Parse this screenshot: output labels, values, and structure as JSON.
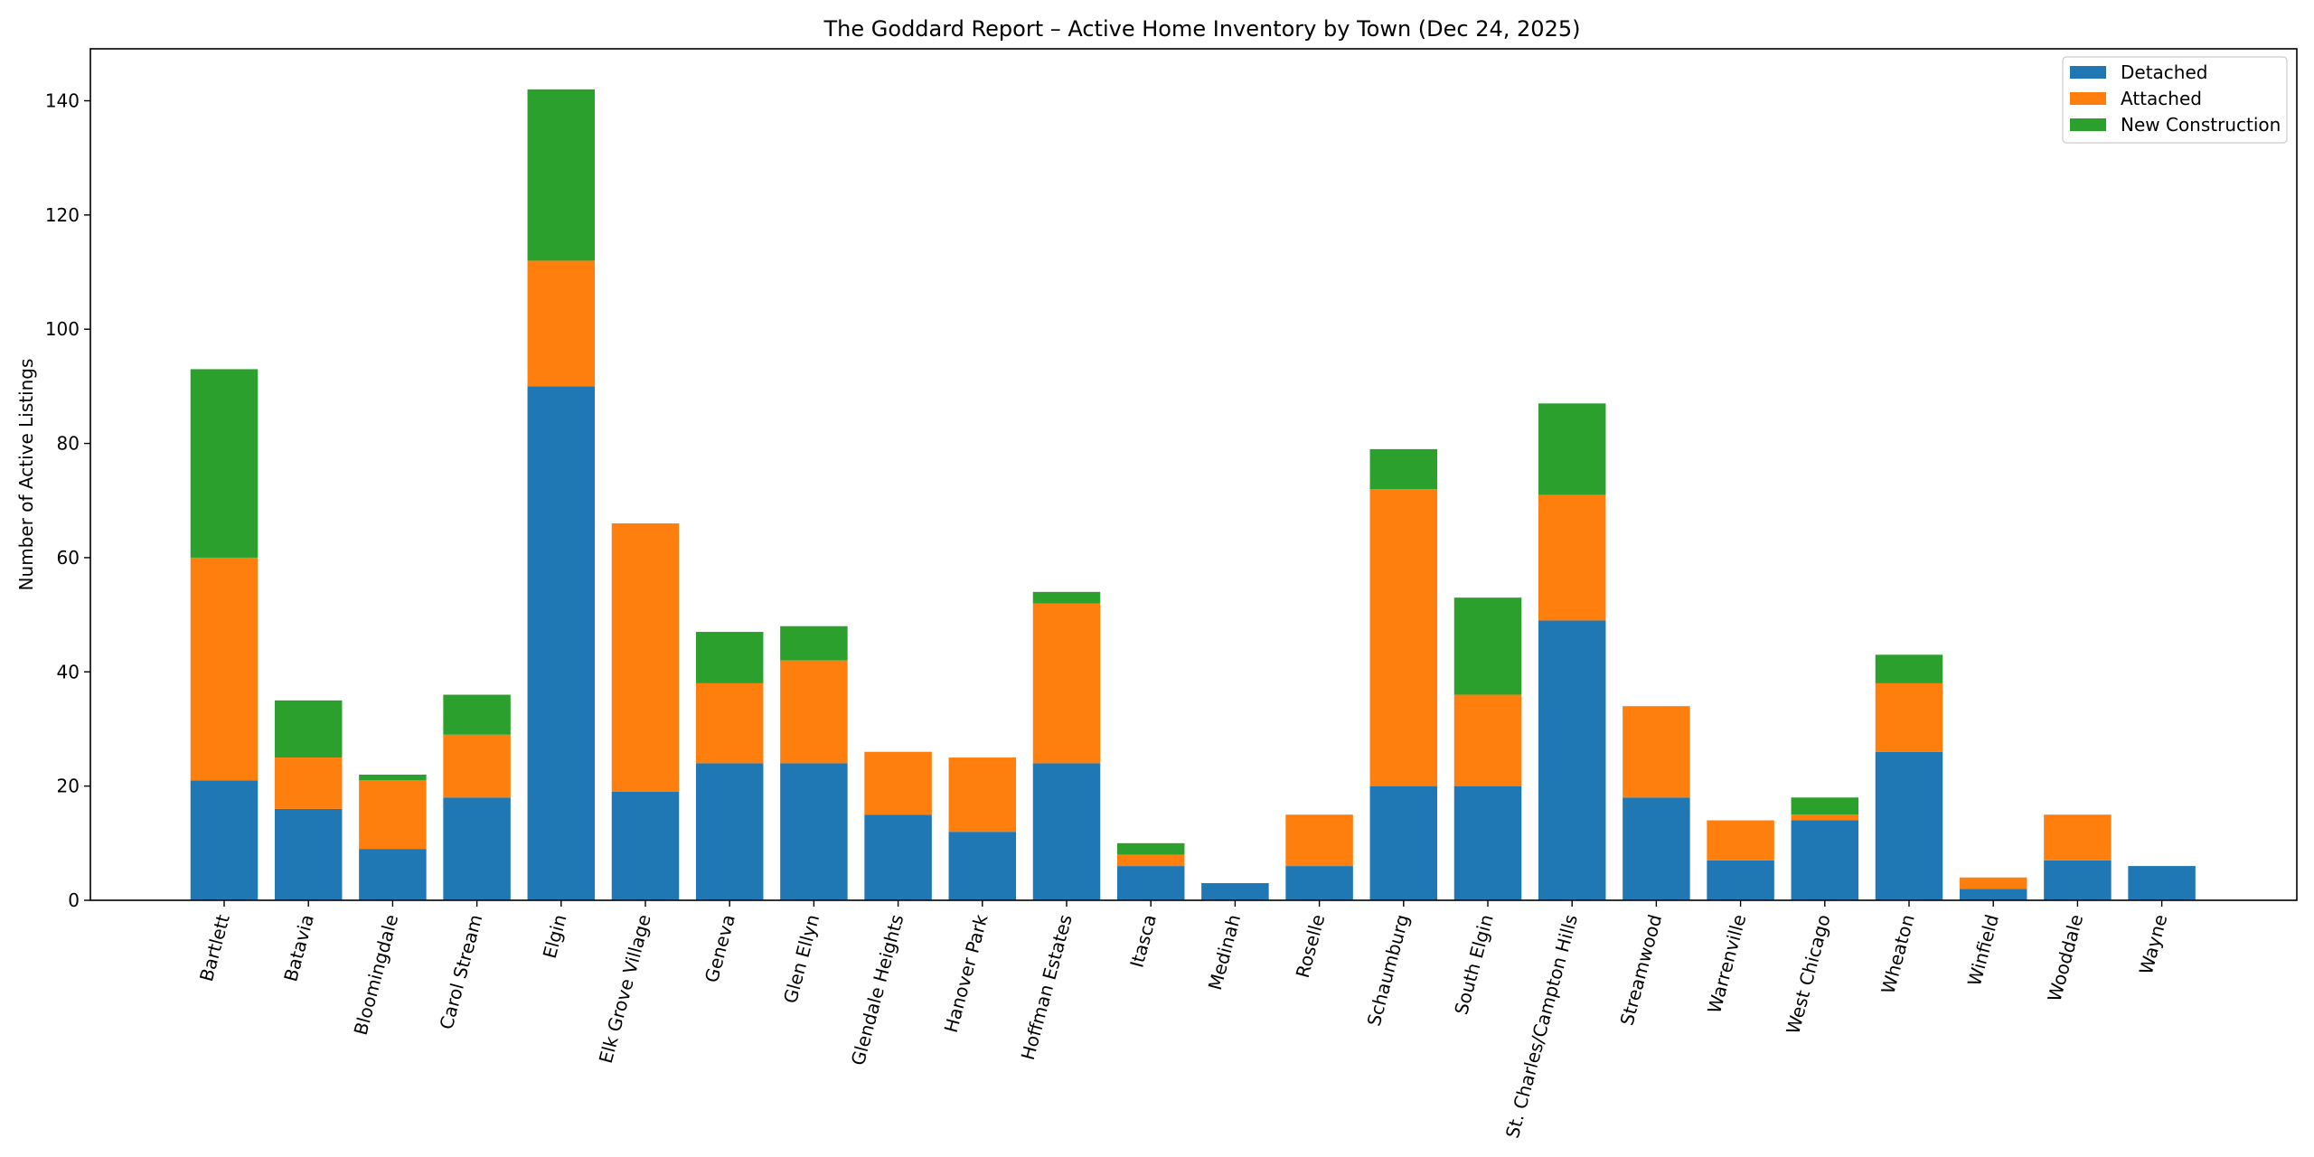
{
  "chart_data": {
    "type": "bar",
    "stacked": true,
    "title": "The Goddard Report – Active Home Inventory by Town (Dec 24, 2025)",
    "xlabel": "",
    "ylabel": "Number of Active Listings",
    "ylim": [
      0,
      149.1
    ],
    "yticks": [
      0,
      20,
      40,
      60,
      80,
      100,
      120,
      140
    ],
    "grid": false,
    "legend_position": "top-right",
    "categories": [
      "Bartlett",
      "Batavia",
      "Bloomingdale",
      "Carol Stream",
      "Elgin",
      "Elk Grove Village",
      "Geneva",
      "Glen Ellyn",
      "Glendale Heights",
      "Hanover Park",
      "Hoffman Estates",
      "Itasca",
      "Medinah",
      "Roselle",
      "Schaumburg",
      "South Elgin",
      "St. Charles/Campton Hills",
      "Streamwood",
      "Warrenville",
      "West Chicago",
      "Wheaton",
      "Winfield",
      "Wooddale",
      "Wayne"
    ],
    "series": [
      {
        "name": "Detached",
        "color": "#1f77b4",
        "values": [
          21,
          16,
          9,
          18,
          90,
          19,
          24,
          24,
          15,
          12,
          24,
          6,
          3,
          6,
          20,
          20,
          49,
          18,
          7,
          14,
          26,
          2,
          7,
          6
        ]
      },
      {
        "name": "Attached",
        "color": "#ff7f0e",
        "values": [
          39,
          9,
          12,
          11,
          22,
          47,
          14,
          18,
          11,
          13,
          28,
          2,
          0,
          9,
          52,
          16,
          22,
          16,
          7,
          1,
          12,
          2,
          8,
          0
        ]
      },
      {
        "name": "New Construction",
        "color": "#2ca02c",
        "values": [
          33,
          10,
          1,
          7,
          30,
          0,
          9,
          6,
          0,
          0,
          2,
          2,
          0,
          0,
          7,
          17,
          16,
          0,
          0,
          3,
          5,
          0,
          0,
          0
        ]
      }
    ]
  }
}
